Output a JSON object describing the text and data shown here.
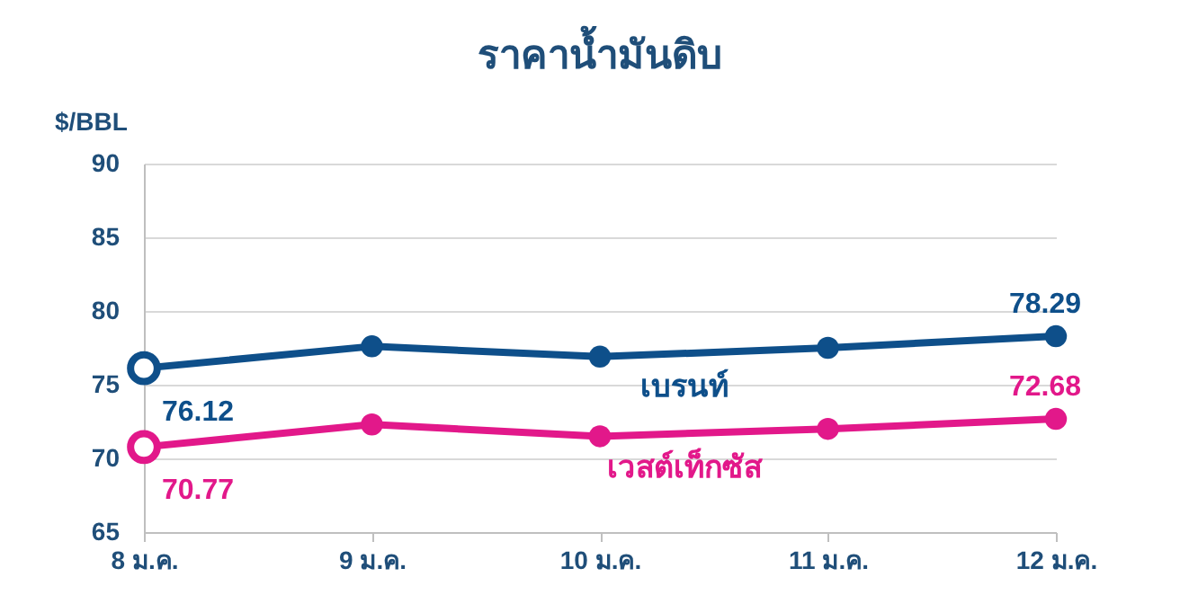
{
  "chart_data": {
    "type": "line",
    "title": "ราคาน้ำมันดิบ",
    "ylabel": "$/BBL",
    "categories": [
      "8 ม.ค.",
      "9 ม.ค.",
      "10 ม.ค.",
      "11 ม.ค.",
      "12 ม.ค."
    ],
    "series": [
      {
        "name": "เบรนท์",
        "color": "#0e4f8a",
        "values": [
          76.12,
          77.6,
          76.9,
          77.5,
          78.29
        ],
        "value_labels": [
          "76.12",
          null,
          null,
          null,
          "78.29"
        ]
      },
      {
        "name": "เวสต์เท็กซัส",
        "color": "#e2188a",
        "values": [
          70.77,
          72.3,
          71.5,
          72.0,
          72.68
        ],
        "value_labels": [
          "70.77",
          null,
          null,
          null,
          "72.68"
        ]
      }
    ],
    "ylim": [
      65,
      90
    ],
    "yticks": [
      65,
      70,
      75,
      80,
      85,
      90
    ],
    "grid": "y",
    "legend": false,
    "marker": "circle",
    "line_style": "solid"
  }
}
